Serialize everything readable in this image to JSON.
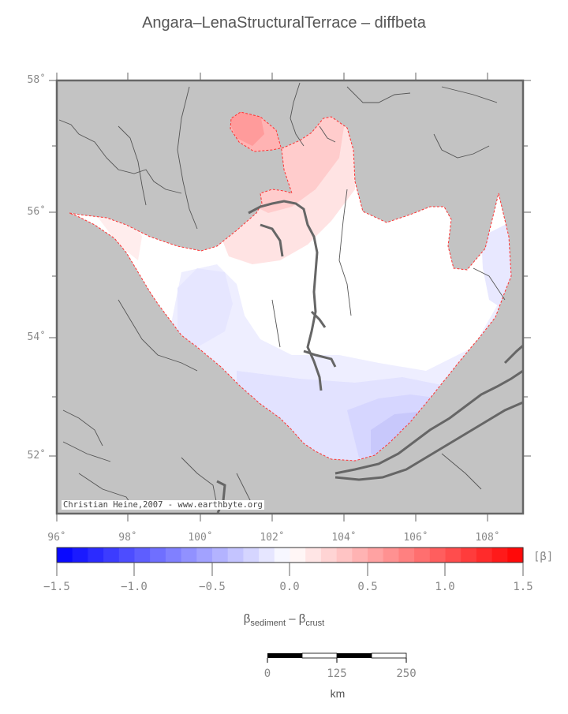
{
  "title": "Angara–LenaStructuralTerrace – diffbeta",
  "lat_labels": [
    "58˚",
    "56˚",
    "54˚",
    "52˚"
  ],
  "lon_labels": [
    "96˚",
    "98˚",
    "100˚",
    "102˚",
    "104˚",
    "106˚",
    "108˚"
  ],
  "colorbar": {
    "ticks": [
      "−1.5",
      "−1.0",
      "−0.5",
      "0.0",
      "0.5",
      "1.0",
      "1.5"
    ],
    "unit": "[β]",
    "min": -1.5,
    "max": 1.5,
    "low_color": "#0000ff",
    "mid_color": "#ffffff",
    "high_color": "#ff0000"
  },
  "axis_label": {
    "beta": "β",
    "sub1": "sediment",
    "minus": " – ",
    "sub2": "crust"
  },
  "credit": "Christian Heine,2007 - www.earthbyte.org",
  "scalebar": {
    "labels": [
      "0",
      "125",
      "250"
    ],
    "unit": "km"
  },
  "colors": {
    "land": "#c3c3c3",
    "frame": "#666666",
    "terrace_fill": "#ffffff",
    "outline": "#ff3333",
    "lake": "#666666"
  }
}
